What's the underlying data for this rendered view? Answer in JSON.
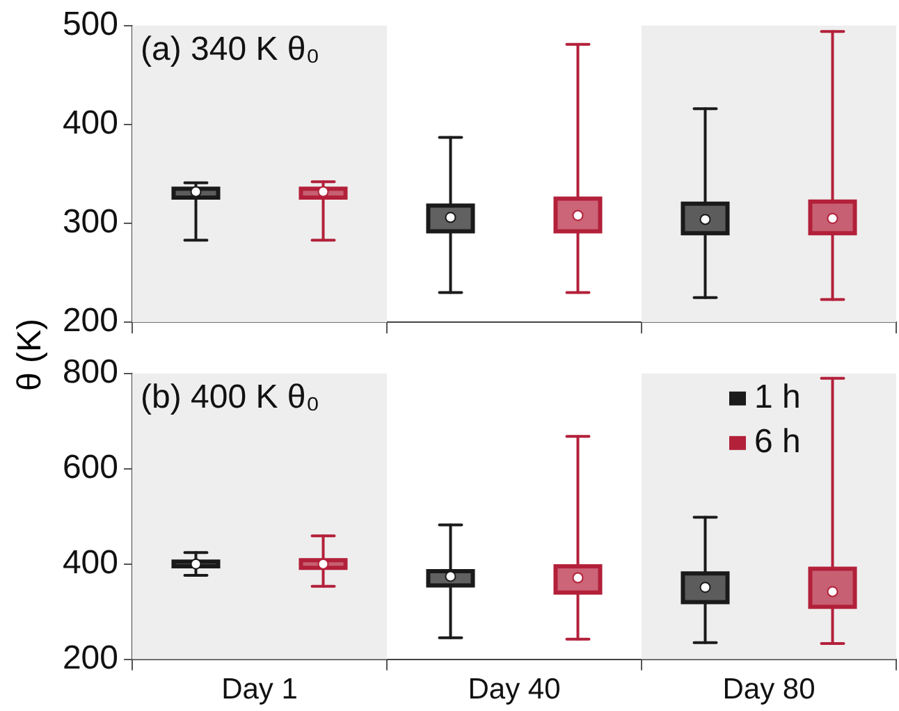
{
  "chart_data": [
    {
      "type": "box",
      "annotations": [
        "(a) 340 K θ₀"
      ],
      "ylabel": "θ (K)",
      "categories": [
        "Day 1",
        "Day 40",
        "Day 80"
      ],
      "ylim": [
        200,
        500
      ],
      "yticks": [
        200,
        300,
        400,
        500
      ],
      "tick_labels": "y",
      "grid": false,
      "legend": false,
      "bands": [
        {
          "axis": "x",
          "from": "Day 1",
          "to": "Day 1",
          "color": "#eeeeee"
        },
        {
          "axis": "x",
          "from": "Day 80",
          "to": "Day 80",
          "color": "#eeeeee"
        }
      ],
      "series": [
        {
          "color": "#1a1a1a",
          "boxes": [
            {
              "low": 283,
              "q1": 326,
              "median": 332,
              "q3": 335,
              "high": 341
            },
            {
              "low": 230,
              "q1": 292,
              "median": 306,
              "q3": 318,
              "high": 387
            },
            {
              "low": 225,
              "q1": 290,
              "median": 304,
              "q3": 320,
              "high": 416
            }
          ]
        },
        {
          "color": "#b3203a",
          "boxes": [
            {
              "low": 283,
              "q1": 326,
              "median": 332,
              "q3": 335,
              "high": 342
            },
            {
              "low": 230,
              "q1": 292,
              "median": 308,
              "q3": 325,
              "high": 481
            },
            {
              "low": 223,
              "q1": 290,
              "median": 305,
              "q3": 322,
              "high": 494
            }
          ]
        }
      ]
    },
    {
      "type": "box",
      "annotations": [
        "(b) 400 K θ₀"
      ],
      "categories": [
        "Day 1",
        "Day 40",
        "Day 80"
      ],
      "ylim": [
        200,
        800
      ],
      "yticks": [
        200,
        400,
        600,
        800
      ],
      "grid": false,
      "legend": "top right",
      "bands": [
        {
          "axis": "x",
          "from": "Day 1",
          "to": "Day 1",
          "color": "#eeeeee"
        },
        {
          "axis": "x",
          "from": "Day 80",
          "to": "Day 80",
          "color": "#eeeeee"
        }
      ],
      "series": [
        {
          "name": "1 h",
          "color": "#1a1a1a",
          "boxes": [
            {
              "low": 376,
              "q1": 395,
              "median": 400,
              "q3": 405,
              "high": 424
            },
            {
              "low": 245,
              "q1": 355,
              "median": 374,
              "q3": 385,
              "high": 482
            },
            {
              "low": 235,
              "q1": 320,
              "median": 351,
              "q3": 380,
              "high": 498
            }
          ]
        },
        {
          "name": "6 h",
          "color": "#b3203a",
          "boxes": [
            {
              "low": 353,
              "q1": 392,
              "median": 400,
              "q3": 408,
              "high": 459
            },
            {
              "low": 242,
              "q1": 340,
              "median": 371,
              "q3": 395,
              "high": 668
            },
            {
              "low": 233,
              "q1": 310,
              "median": 342,
              "q3": 390,
              "high": 790
            }
          ]
        }
      ]
    }
  ]
}
